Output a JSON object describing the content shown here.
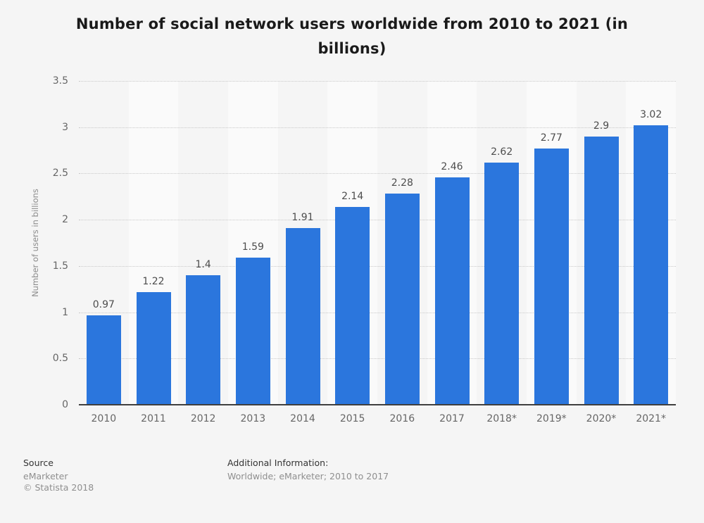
{
  "title": "Number of social network users worldwide from 2010 to 2021 (in billions)",
  "chart_data": {
    "type": "bar",
    "title": "Number of social network users worldwide from 2010 to 2021 (in billions)",
    "categories": [
      "2010",
      "2011",
      "2012",
      "2013",
      "2014",
      "2015",
      "2016",
      "2017",
      "2018*",
      "2019*",
      "2020*",
      "2021*"
    ],
    "values": [
      0.97,
      1.22,
      1.4,
      1.59,
      1.91,
      2.14,
      2.28,
      2.46,
      2.62,
      2.77,
      2.9,
      3.02
    ],
    "value_labels": [
      "0.97",
      "1.22",
      "1.4",
      "1.59",
      "1.91",
      "2.14",
      "2.28",
      "2.46",
      "2.62",
      "2.77",
      "2.9",
      "3.02"
    ],
    "xlabel": "",
    "ylabel": "Number of users in billions",
    "ylim": [
      0,
      3.5
    ],
    "yticks": [
      "0",
      "0.5",
      "1",
      "1.5",
      "2",
      "2.5",
      "3",
      "3.5"
    ],
    "grid": "horizontal-dotted",
    "legend": "none"
  },
  "footer": {
    "source_heading": "Source",
    "source_line1": "eMarketer",
    "source_line2": "© Statista 2018",
    "additional_heading": "Additional Information:",
    "additional_line1": "Worldwide; eMarketer; 2010 to 2017"
  },
  "colors": {
    "background": "#f5f5f5",
    "band_alt": "#fafafa",
    "bar": "#2b76dd",
    "gridline": "#c9c9c9",
    "axis_line": "#3f3f3f",
    "tick_text": "#666666",
    "value_text": "#4d4d4d",
    "title_text": "#1a1a1a",
    "footer_heading_text": "#333333",
    "footer_text": "#8f8f8f"
  }
}
